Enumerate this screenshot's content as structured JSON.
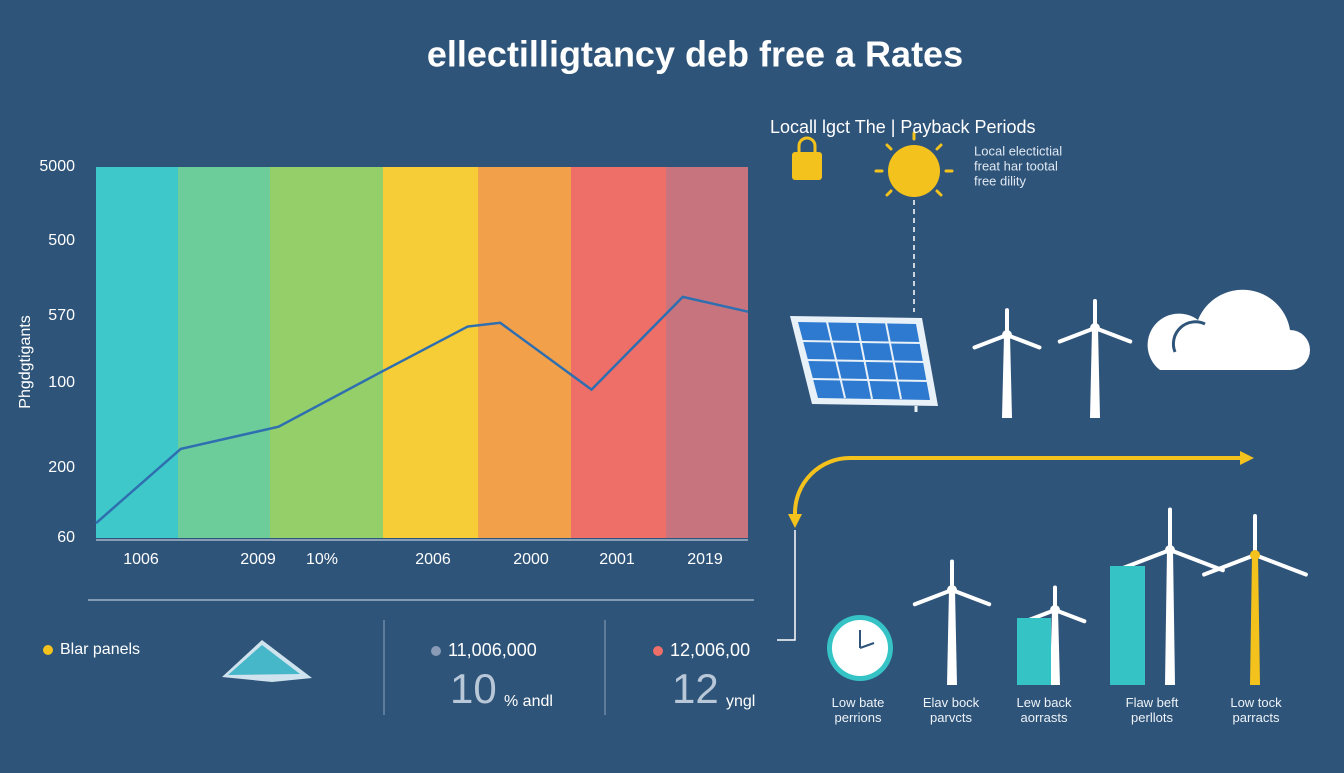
{
  "header": {
    "title": "ellectilligtancy deb free a Rates"
  },
  "chart_data": {
    "type": "line",
    "y_axis_title": "Phgdgtigants",
    "y_labels": [
      "5000",
      "500",
      "570",
      "100",
      "200",
      "60"
    ],
    "x_labels": [
      "1006",
      "2009",
      "10%",
      "2006",
      "2000",
      "2001",
      "2019"
    ],
    "band_colors": [
      "#3ec8c9",
      "#6ccd9b",
      "#94cf69",
      "#f6cd36",
      "#f3a04b",
      "#ee6e68",
      "#c8747f"
    ],
    "x": [
      0,
      13,
      28,
      44,
      57,
      62,
      76,
      90,
      100
    ],
    "xlim": [
      0,
      100
    ],
    "series": [
      {
        "color": "#2f6fb0",
        "values": [
          4,
          24,
          30,
          45,
          57,
          58,
          40,
          65,
          61
        ]
      }
    ],
    "ylim": [
      0,
      100
    ]
  },
  "panel": {
    "heading": "Locall lgct The | Payback Periods",
    "note": [
      "Local electictial",
      "freat har tootal",
      "free dility"
    ]
  },
  "stats": {
    "legend": "Blar panels",
    "items": [
      {
        "label": "11,006,000",
        "big": "10",
        "suffix": "% andl",
        "dot": "#8a9bb8"
      },
      {
        "label": "12,006,00",
        "big": "12",
        "suffix": "yngl",
        "dot": "#ee6e68"
      }
    ]
  },
  "periods": [
    "Low bate\nperrions",
    "Elav bock\nparvcts",
    "Lew back\naorrasts",
    "Flaw beft\nperllots",
    "Low tock\nparracts"
  ]
}
